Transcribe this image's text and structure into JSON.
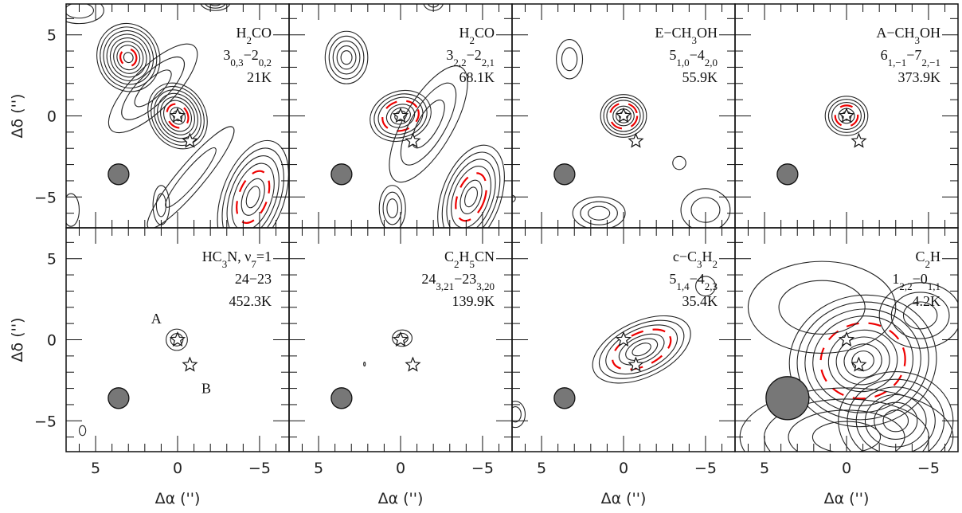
{
  "chart_data": {
    "type": "contour",
    "xlabel": "Δα ('')",
    "ylabel": "Δδ ('')",
    "xlim": [
      6.8,
      -6.8
    ],
    "ylim": [
      -6.9,
      6.9
    ],
    "xticks": [
      {
        "value": 5,
        "label": "5"
      },
      0,
      {
        "value": -5,
        "label": "−5"
      }
    ],
    "yticks": [
      {
        "value": -5,
        "label": "−5"
      },
      0,
      5
    ],
    "xminorticks": [
      6,
      4,
      3,
      2,
      1,
      -1,
      -2,
      -3,
      -4,
      -6
    ],
    "yminorticks": [
      -6,
      -4,
      -3,
      -2,
      -1,
      1,
      2,
      3,
      4,
      6
    ],
    "sources": [
      {
        "x": 0,
        "y": 0
      },
      {
        "x": -0.75,
        "y": -1.55
      }
    ],
    "panels": [
      {
        "lines": [
          [
            "H",
            {
              "sub": "2"
            },
            "CO"
          ],
          [
            "3",
            {
              "sub": "0,3"
            },
            "−2",
            {
              "sub": "0,2"
            }
          ],
          [
            "21K"
          ]
        ]
      },
      {
        "lines": [
          [
            "H",
            {
              "sub": "2"
            },
            "CO"
          ],
          [
            "3",
            {
              "sub": "2,2"
            },
            "−2",
            {
              "sub": "2,1"
            }
          ],
          [
            "68.1K"
          ]
        ]
      },
      {
        "lines": [
          [
            "E−CH",
            {
              "sub": "3"
            },
            "OH"
          ],
          [
            "5",
            {
              "sub": "1,0"
            },
            "−4",
            {
              "sub": "2,0"
            }
          ],
          [
            "55.9K"
          ]
        ]
      },
      {
        "lines": [
          [
            "A−CH",
            {
              "sub": "3"
            },
            "OH"
          ],
          [
            "6",
            {
              "sub": "1,−1"
            },
            "−7",
            {
              "sub": "2,−1"
            }
          ],
          [
            "373.9K"
          ]
        ]
      },
      {
        "lines": [
          [
            "HC",
            {
              "sub": "3"
            },
            "N, ν",
            {
              "sub": "7"
            },
            "=1"
          ],
          [
            "24−23"
          ],
          [
            "452.3K"
          ]
        ],
        "annotations": [
          "A",
          "B"
        ]
      },
      {
        "lines": [
          [
            "C",
            {
              "sub": "2"
            },
            "H",
            {
              "sub": "5"
            },
            "CN"
          ],
          [
            "24",
            {
              "sub": "3,21"
            },
            "−23",
            {
              "sub": "3,20"
            }
          ],
          [
            "139.9K"
          ]
        ]
      },
      {
        "lines": [
          [
            "c−C",
            {
              "sub": "3"
            },
            "H",
            {
              "sub": "2"
            }
          ],
          [
            "5",
            {
              "sub": "1,4"
            },
            "−4",
            {
              "sub": "2,3"
            }
          ],
          [
            "35.4K"
          ]
        ]
      },
      {
        "lines": [
          [
            "C",
            {
              "sub": "2"
            },
            "H"
          ],
          [
            "1",
            {
              "sub": "2,2"
            },
            "−0",
            {
              "sub": "1,1"
            }
          ],
          [
            "4.2K"
          ]
        ]
      }
    ]
  }
}
